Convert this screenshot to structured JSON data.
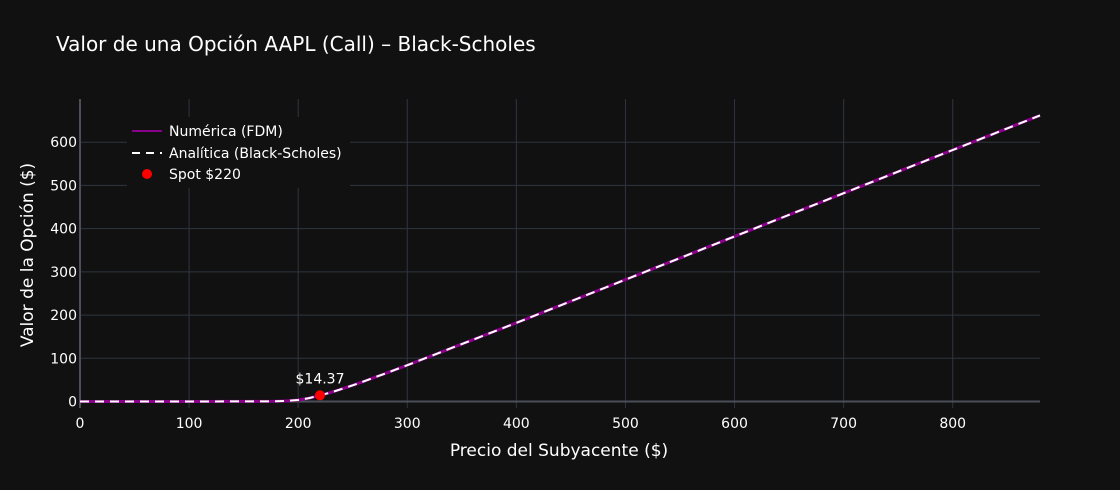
{
  "chart_data": {
    "type": "line",
    "title": "Valor de una Opción AAPL (Call) – Black-Scholes",
    "xlabel": "Precio del Subyacente ($)",
    "ylabel": "Valor de la Opción ($)",
    "xlim": [
      0,
      880
    ],
    "ylim": [
      -15,
      700
    ],
    "x_ticks": [
      0,
      100,
      200,
      300,
      400,
      500,
      600,
      700,
      800
    ],
    "y_ticks": [
      0,
      100,
      200,
      300,
      400,
      500,
      600
    ],
    "x_tick_labels": [
      "0",
      "100",
      "200",
      "300",
      "400",
      "500",
      "600",
      "700",
      "800"
    ],
    "y_tick_labels": [
      "0",
      "100",
      "200",
      "300",
      "400",
      "500",
      "600"
    ],
    "grid": true,
    "legend_position": "top-left",
    "series": [
      {
        "name": "Numérica (FDM)",
        "color": "#8B008B",
        "style": "solid",
        "x": [
          0,
          100,
          180,
          190,
          200,
          210,
          220,
          230,
          240,
          250,
          260,
          280,
          300,
          350,
          400,
          500,
          600,
          700,
          800,
          880
        ],
        "y": [
          0,
          0,
          0.5,
          1.5,
          3.6,
          7.8,
          14.37,
          21,
          29,
          37.5,
          46.5,
          65,
          84,
          133,
          182,
          282,
          382,
          482,
          582,
          662
        ]
      },
      {
        "name": "Analítica (Black-Scholes)",
        "color": "#ffffff",
        "style": "dash",
        "x": [
          0,
          100,
          180,
          190,
          200,
          210,
          220,
          230,
          240,
          250,
          260,
          280,
          300,
          350,
          400,
          500,
          600,
          700,
          800,
          880
        ],
        "y": [
          0,
          0,
          0.5,
          1.5,
          3.6,
          7.8,
          14.37,
          21,
          29,
          37.5,
          46.5,
          65,
          84,
          133,
          182,
          282,
          382,
          482,
          582,
          662
        ]
      },
      {
        "name": "Spot $220",
        "color": "#ff0000",
        "style": "marker",
        "x": [
          220
        ],
        "y": [
          14.37
        ]
      }
    ],
    "annotations": [
      {
        "text": "$14.37",
        "x": 220,
        "y": 14.37
      }
    ]
  }
}
